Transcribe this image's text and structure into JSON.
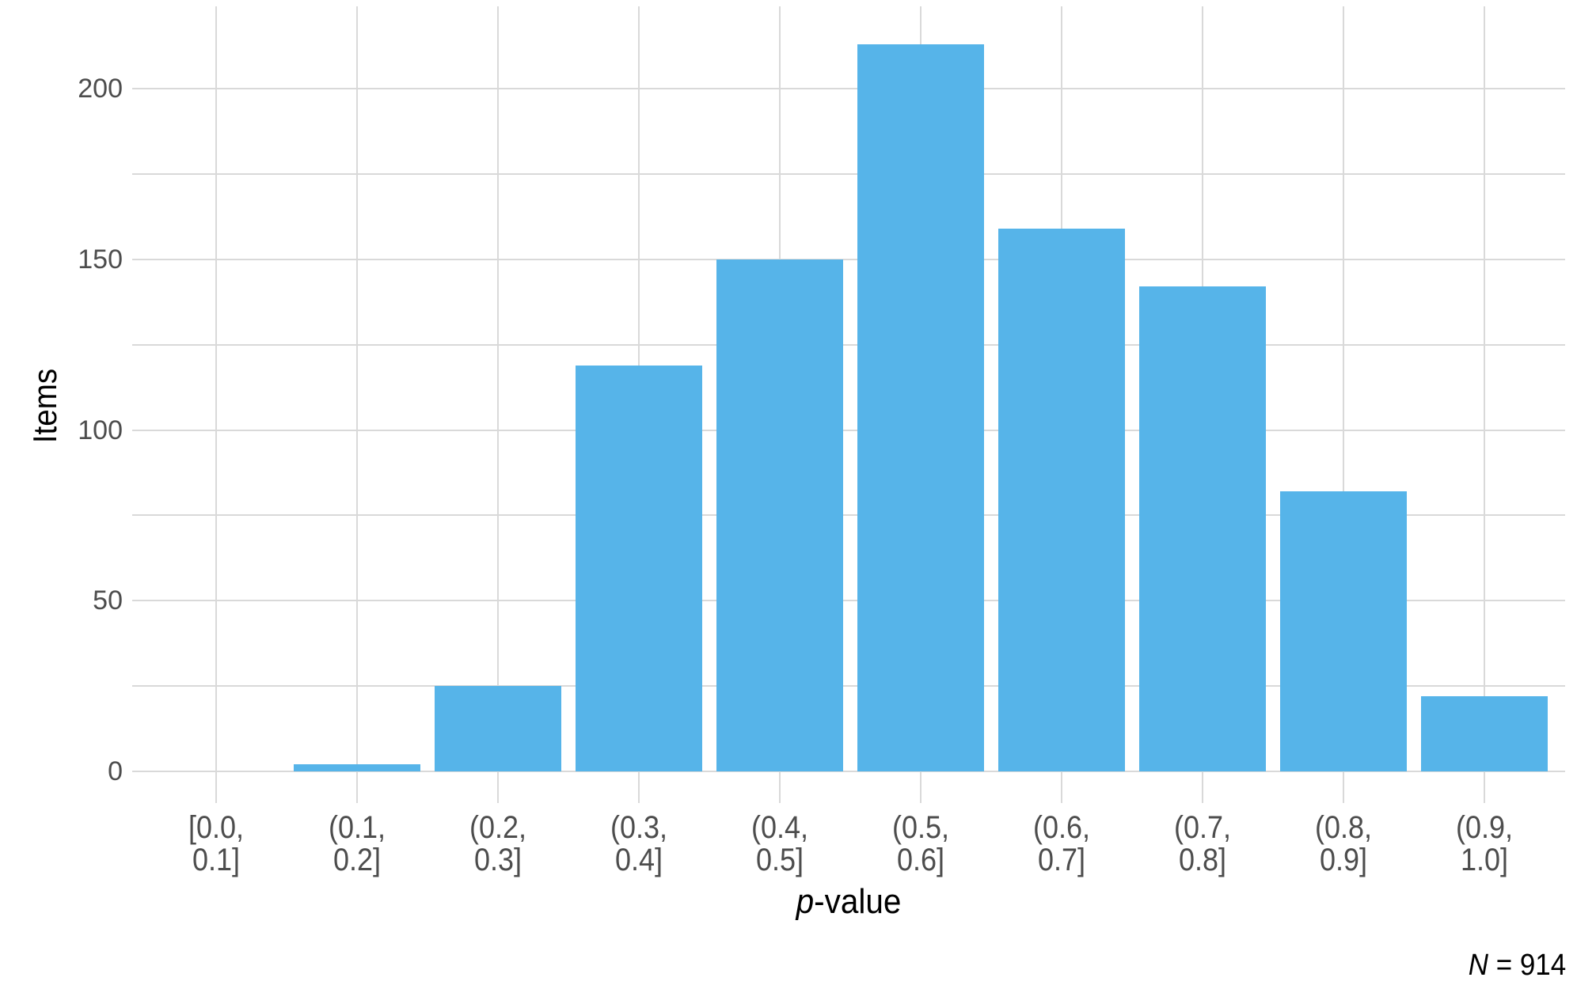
{
  "chart_data": {
    "type": "bar",
    "title": "",
    "categories": [
      "[0.0,\n0.1]",
      "(0.1,\n0.2]",
      "(0.2,\n0.3]",
      "(0.3,\n0.4]",
      "(0.4,\n0.5]",
      "(0.5,\n0.6]",
      "(0.6,\n0.7]",
      "(0.7,\n0.8]",
      "(0.8,\n0.9]",
      "(0.9,\n1.0]"
    ],
    "values": [
      0,
      2,
      25,
      119,
      150,
      213,
      159,
      142,
      82,
      22
    ],
    "xlabel": "p-value",
    "xlabel_parts": {
      "italic": "p",
      "regular": "-value"
    },
    "ylabel": "Items",
    "yticks": [
      0,
      50,
      100,
      150,
      200
    ],
    "gridline_step": 25,
    "ylim": [
      0,
      224
    ],
    "grid": true,
    "legend": "none",
    "annotation": "N = 914",
    "annotation_parts": {
      "italic": "N",
      "regular": " = 914"
    },
    "sample_size": 914,
    "colors": {
      "bar": "#56B4E9",
      "gridline": "#D9D9D9",
      "tick_label": "#4D4D4D",
      "axis_title": "#000000",
      "background": "#FFFFFF"
    }
  }
}
